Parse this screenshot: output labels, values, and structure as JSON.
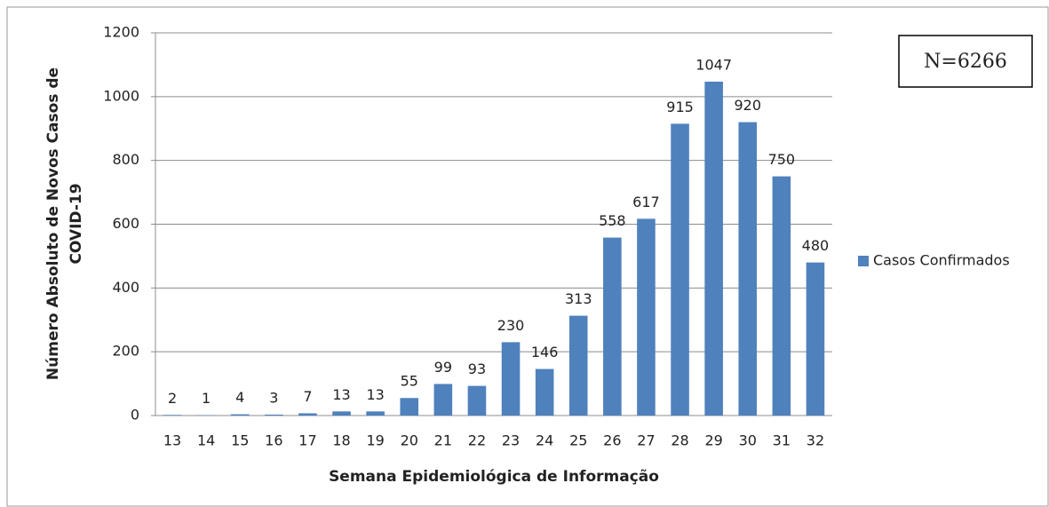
{
  "chart_data": {
    "type": "bar",
    "ylabel": [
      "Número Absoluto de Novos Casos de",
      "COVID-19"
    ],
    "xlabel": "Semana Epidemiológica de Informação",
    "annotation": "N=6266",
    "categories": [
      "13",
      "14",
      "15",
      "16",
      "17",
      "18",
      "19",
      "20",
      "21",
      "22",
      "23",
      "24",
      "25",
      "26",
      "27",
      "28",
      "29",
      "30",
      "31",
      "32"
    ],
    "series": [
      {
        "name": "Casos Confirmados",
        "color": "#4f81bd",
        "values": [
          2,
          1,
          4,
          3,
          7,
          13,
          13,
          55,
          99,
          93,
          230,
          146,
          313,
          558,
          617,
          915,
          1047,
          920,
          750,
          480
        ]
      }
    ],
    "ylim": [
      0,
      1200
    ],
    "yticks": [
      0,
      200,
      400,
      600,
      800,
      1000,
      1200
    ],
    "grid": true,
    "legend": "right"
  }
}
